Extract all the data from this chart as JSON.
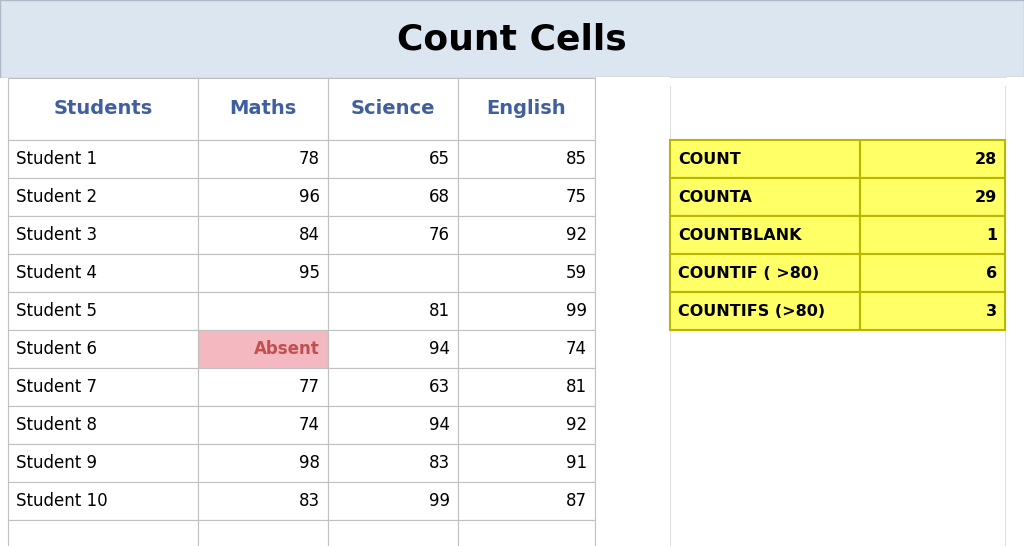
{
  "title": "Count Cells",
  "title_bg": "#dce6f1",
  "title_fontsize": 26,
  "fig_bg": "#e8e8e8",
  "header_row": [
    "Students",
    "Maths",
    "Science",
    "English"
  ],
  "header_color": "#3f5fa0",
  "header_bg": "#ffffff",
  "header_fontsize": 14,
  "students": [
    "Student 1",
    "Student 2",
    "Student 3",
    "Student 4",
    "Student 5",
    "Student 6",
    "Student 7",
    "Student 8",
    "Student 9",
    "Student 10"
  ],
  "maths": [
    "78",
    "96",
    "84",
    "95",
    "",
    "Absent",
    "77",
    "74",
    "98",
    "83"
  ],
  "science": [
    "65",
    "68",
    "76",
    "",
    "81",
    "94",
    "63",
    "94",
    "83",
    "99"
  ],
  "english": [
    "85",
    "75",
    "92",
    "59",
    "99",
    "74",
    "81",
    "92",
    "91",
    "87"
  ],
  "absent_row": 5,
  "absent_col": 1,
  "absent_bg": "#f4b8c1",
  "absent_color": "#c0504d",
  "summary_labels": [
    "COUNT",
    "COUNTA",
    "COUNTBLANK",
    "COUNTIF ( >80)",
    "COUNTIFS (>80)"
  ],
  "summary_values": [
    "28",
    "29",
    "1",
    "6",
    "3"
  ],
  "summary_bg": "#ffff66",
  "summary_border": "#b8b800",
  "cell_bg": "#ffffff",
  "cell_border": "#c0c0c0",
  "data_fontsize": 12,
  "grid_color": "#d0d0d0",
  "grid_line_color": "#b0b0b0"
}
